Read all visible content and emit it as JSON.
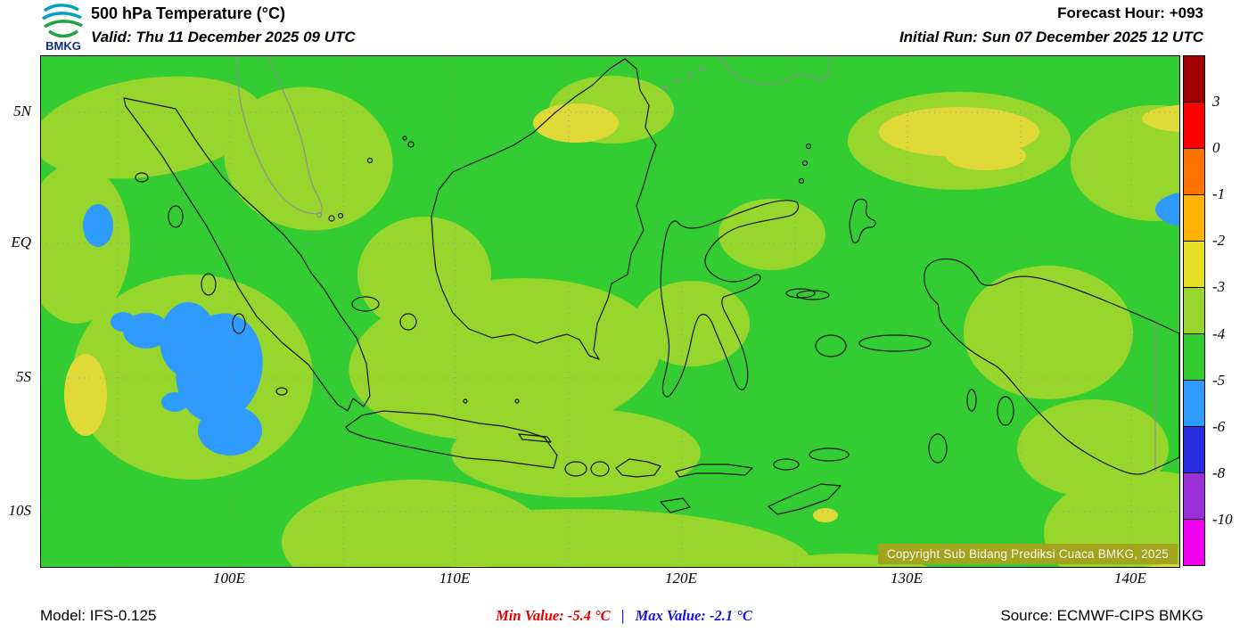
{
  "header": {
    "logo": "BMKG",
    "title": "500 hPa Temperature (°C)",
    "valid": "Valid: Thu 11 December 2025 09 UTC",
    "forecast_hour": "Forecast Hour: +093",
    "initial_run": "Initial Run: Sun 07 December 2025 12 UTC"
  },
  "map": {
    "lat_labels": [
      "5N",
      "EQ",
      "5S",
      "10S"
    ],
    "lon_labels": [
      "100E",
      "110E",
      "120E",
      "130E",
      "140E"
    ],
    "copyright": "Copyright Sub Bidang Prediksi Cuaca BMKG, 2025",
    "fill_colors": {
      "green": "#33cd33",
      "lgreen": "#97d62c",
      "yellow": "#e0da39",
      "blue": "#2f9bff"
    }
  },
  "colorbar": {
    "tick_labels": [
      "3",
      "0",
      "-1",
      "-2",
      "-3",
      "-4",
      "-5",
      "-6",
      "-8",
      "-10"
    ],
    "segment_colors": [
      "#a00000",
      "#fe0000",
      "#ff7300",
      "#ffb300",
      "#e8df25",
      "#97d62c",
      "#33cd33",
      "#2f9bff",
      "#2b2be0",
      "#9b30d9",
      "#ee00ee"
    ]
  },
  "footer": {
    "model": "Model: IFS-0.125",
    "min_value": "Min Value: -5.4 °C",
    "separator": "|",
    "max_value": "Max Value: -2.1 °C",
    "source": "Source: ECMWF-CIPS BMKG",
    "min_color": "#e60000",
    "max_color": "#1414e6"
  }
}
